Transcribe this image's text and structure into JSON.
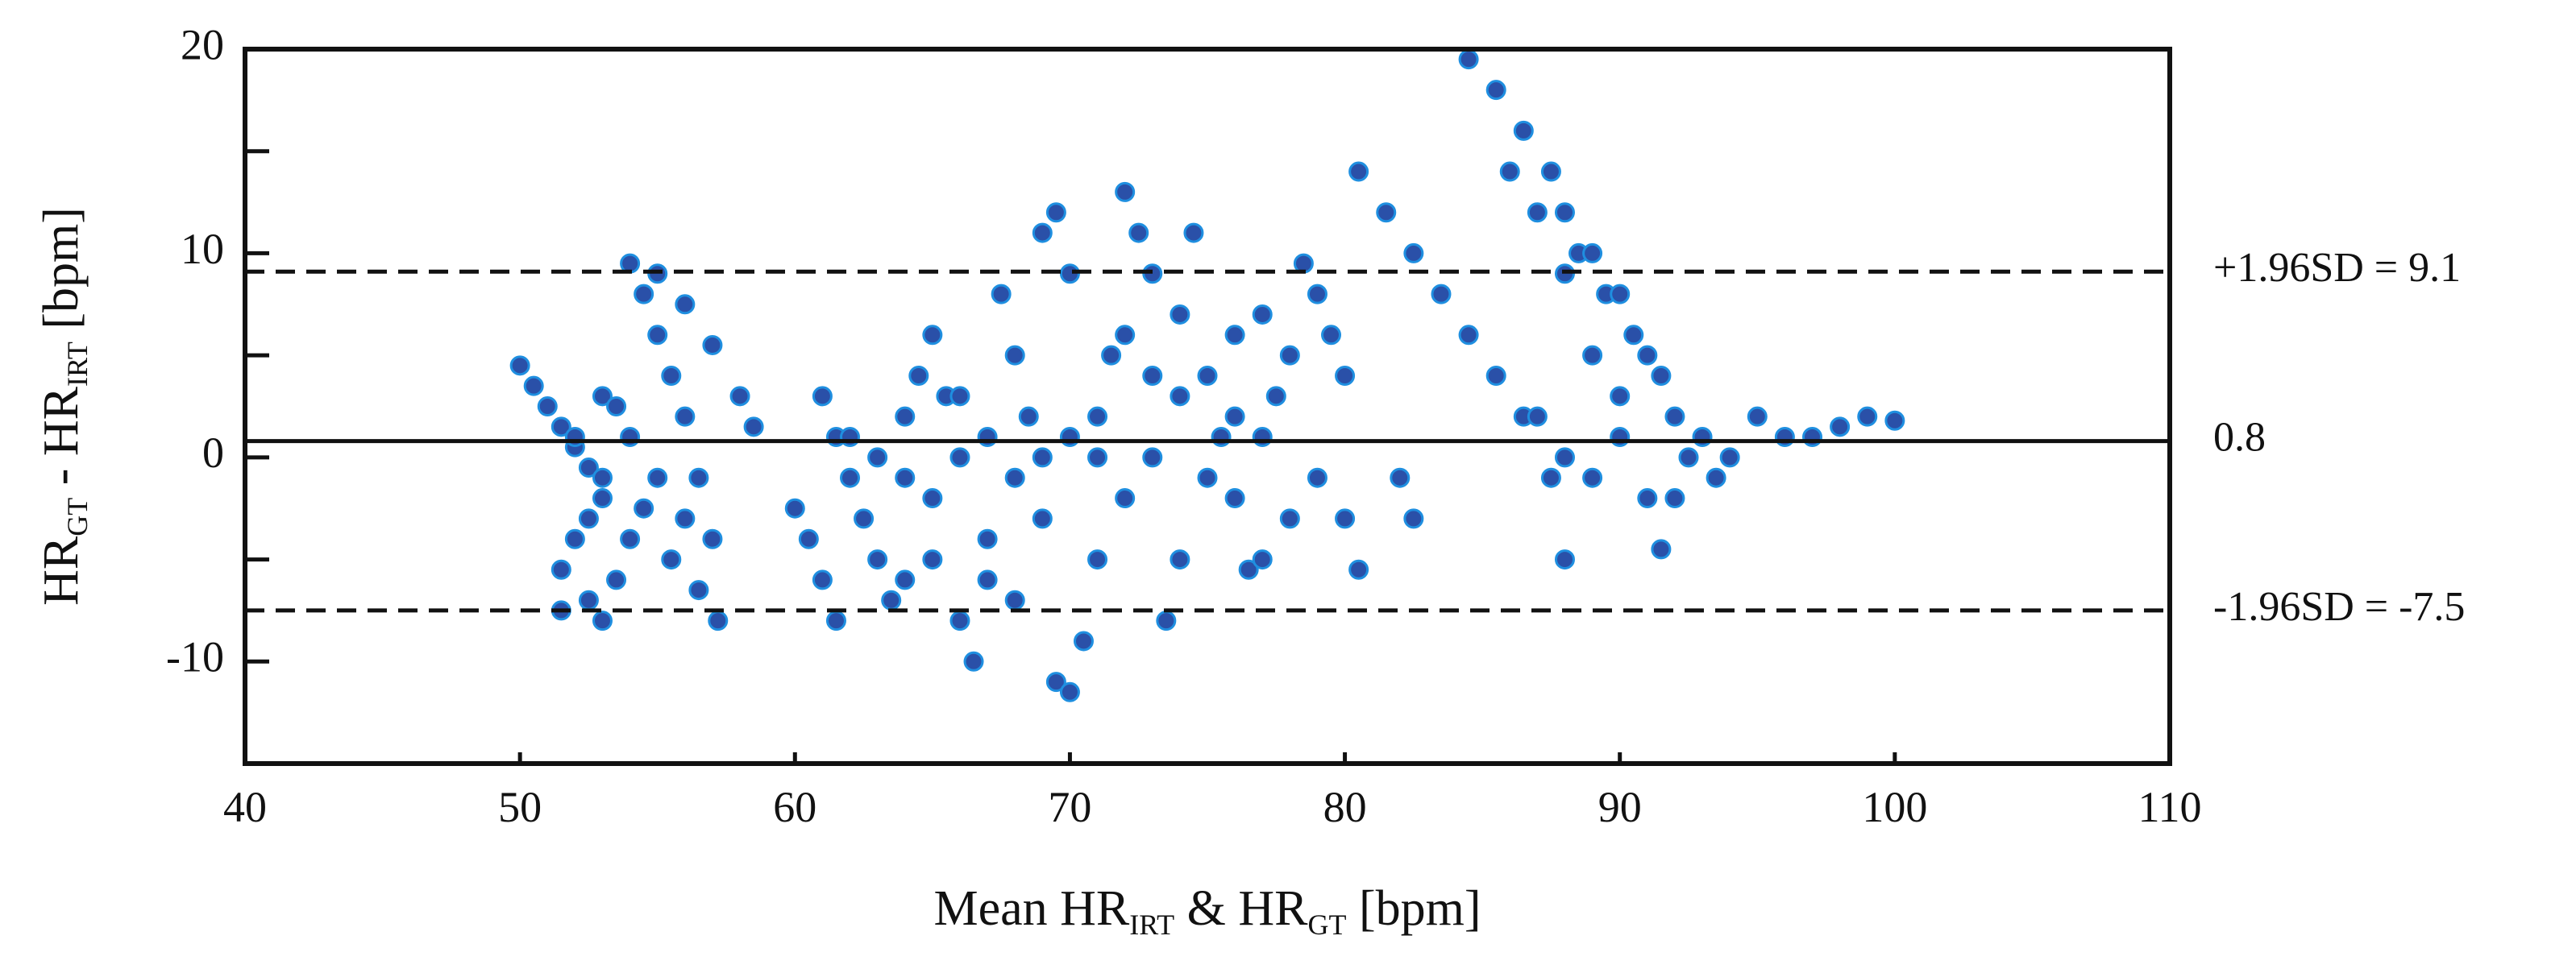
{
  "chart_data": {
    "type": "scatter",
    "x_label": [
      "Mean HR",
      "IRT",
      " & HR",
      "GT",
      " [bpm]"
    ],
    "y_label": [
      "HR",
      "GT",
      " - HR",
      "IRT",
      " [bpm]"
    ],
    "xlim": [
      40,
      110
    ],
    "ylim": [
      -15,
      20
    ],
    "xticks": [
      40,
      50,
      60,
      70,
      80,
      90,
      100,
      110
    ],
    "yticks": [
      -10,
      0,
      10,
      20
    ],
    "minor_yticks": [
      -5,
      5,
      15
    ],
    "grid": false,
    "color": "#2a50a8",
    "edge_color": "#1f8fe0",
    "reference_lines": [
      {
        "value": 9.1,
        "label": "+1.96SD = 9.1",
        "style": "dashed"
      },
      {
        "value": 0.8,
        "label": "0.8",
        "style": "solid"
      },
      {
        "value": -7.5,
        "label": "-1.96SD = -7.5",
        "style": "dashed"
      }
    ],
    "x": [
      50,
      50.5,
      51,
      51.5,
      52,
      52.5,
      53,
      51.5,
      52,
      52.5,
      53,
      51.5,
      52.5,
      53,
      53.5,
      54,
      54,
      54.5,
      55,
      55.5,
      56,
      56.5,
      57,
      57.2,
      55,
      56,
      57,
      58,
      58.5,
      53,
      54,
      55,
      56,
      52,
      53.5,
      54.5,
      55.5,
      56.5,
      60,
      60.5,
      61,
      61.5,
      61,
      61.5,
      62,
      62.5,
      63,
      63.5,
      64,
      64,
      64.5,
      65,
      65.5,
      66,
      66,
      66.5,
      67,
      67.5,
      68,
      68.5,
      69,
      69,
      69.5,
      70,
      69.5,
      70,
      70.5,
      71,
      71,
      71.5,
      72,
      72.5,
      73,
      73.5,
      74,
      74,
      74.5,
      75,
      75.5,
      76,
      76.5,
      77,
      77.5,
      78,
      78.5,
      79,
      79.5,
      80,
      80.5,
      80,
      79,
      78,
      77,
      76,
      75,
      74,
      73,
      72,
      71,
      70,
      69,
      68,
      67,
      66,
      65,
      64,
      63,
      62,
      65,
      67,
      68,
      72,
      73,
      76,
      77,
      80.5,
      81.5,
      82.5,
      83.5,
      84.5,
      85.5,
      86.5,
      87.5,
      88,
      82,
      82.5,
      84.5,
      85.5,
      86.5,
      87.5,
      88,
      88.5,
      89.5,
      90.5,
      91.5,
      92,
      86,
      87,
      88,
      89,
      90,
      91,
      91.5,
      92,
      87,
      88,
      89,
      90,
      93,
      94,
      95,
      96,
      97,
      98,
      99,
      100,
      93.5,
      92.5,
      91,
      89,
      90
    ],
    "values": [
      4.5,
      3.5,
      2.5,
      1.5,
      0.5,
      -0.5,
      -1,
      -5.5,
      -4,
      -3,
      -2,
      -7.5,
      -7,
      -8,
      -6,
      -4,
      9.5,
      8,
      6,
      4,
      2,
      -1,
      -4,
      -8,
      9,
      7.5,
      5.5,
      3,
      1.5,
      3,
      1,
      -1,
      -3,
      1,
      2.5,
      -2.5,
      -5,
      -6.5,
      -2.5,
      -4,
      -6,
      -8,
      3,
      1,
      -1,
      -3,
      -5,
      -7,
      -6,
      2,
      4,
      6,
      3,
      0,
      -8,
      -10,
      -6,
      8,
      5,
      2,
      -3,
      11,
      12,
      9,
      -11,
      -11.5,
      -9,
      -5,
      2,
      5,
      13,
      11,
      9,
      -8,
      -5,
      7,
      11,
      4,
      1,
      -2,
      -5.5,
      -5,
      3,
      5,
      9.5,
      8,
      6,
      -3,
      -5.5,
      4,
      -1,
      -3,
      1,
      2,
      -1,
      3,
      0,
      -2,
      0,
      1,
      0,
      -1,
      1,
      3,
      -2,
      -1,
      0,
      1,
      -5,
      -4,
      -7,
      6,
      4,
      6,
      7,
      14,
      12,
      10,
      8,
      6,
      4,
      2,
      -1,
      -5,
      -1,
      -3,
      19.5,
      18,
      16,
      14,
      12,
      10,
      8,
      6,
      4,
      2,
      14,
      12,
      9,
      5,
      1,
      -2,
      -4.5,
      -2,
      2,
      0,
      -1,
      3,
      1,
      0,
      2,
      1,
      1,
      1.5,
      2,
      1.8,
      -1,
      0,
      5,
      10,
      8
    ]
  }
}
